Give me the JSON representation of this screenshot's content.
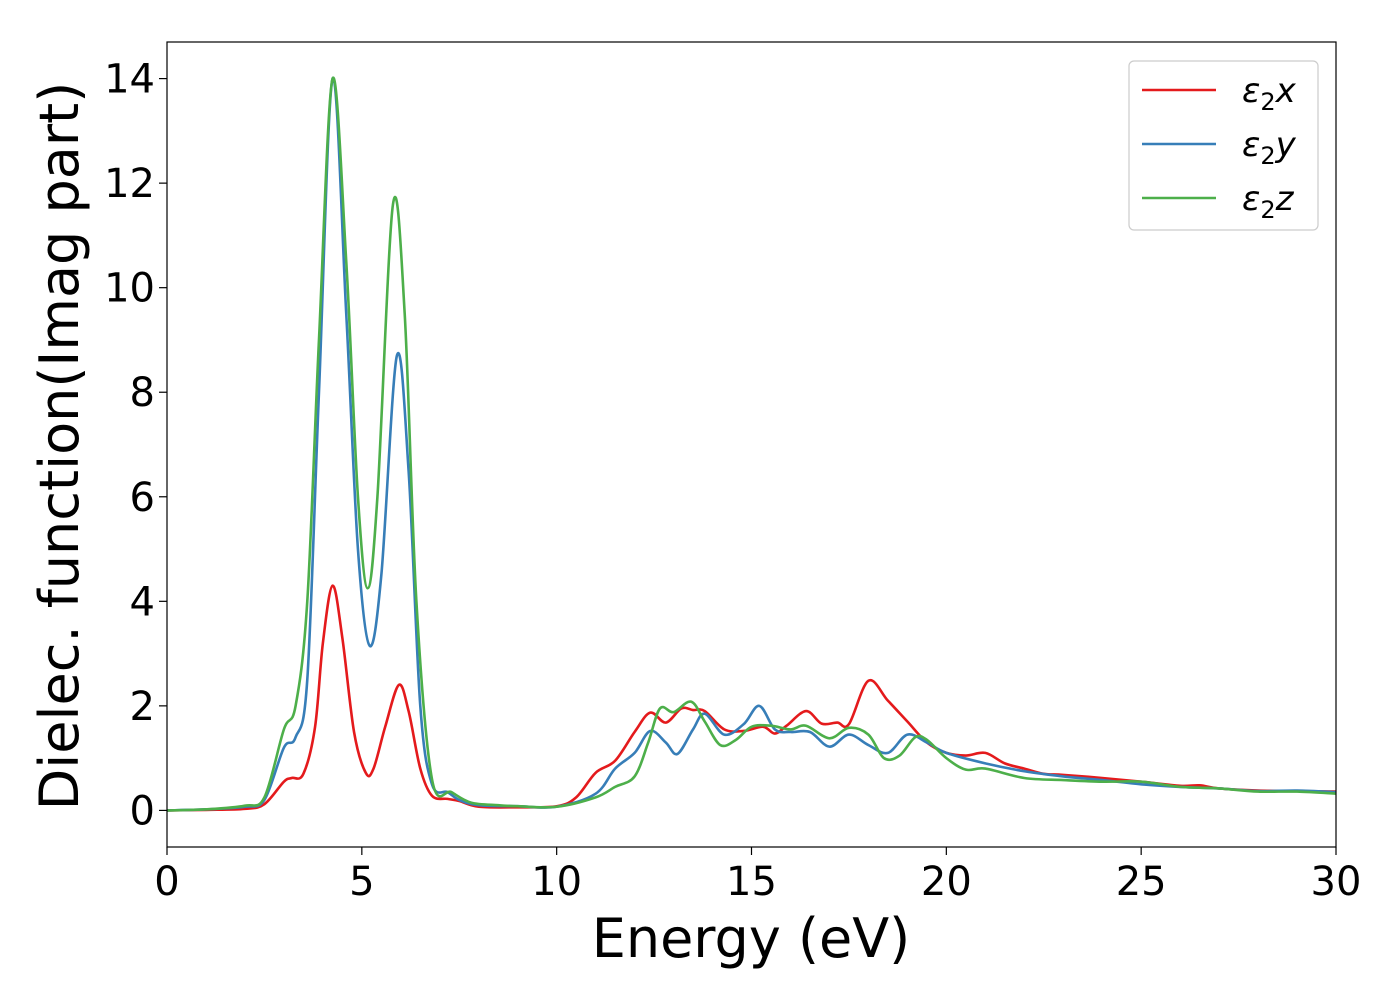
{
  "chart_data": {
    "type": "line",
    "title": "",
    "xlabel": "Energy (eV)",
    "ylabel": "Dielec. function(Imag part)",
    "xlim": [
      0,
      30
    ],
    "ylim": [
      -0.7,
      14.7
    ],
    "xticks": [
      0,
      5,
      10,
      15,
      20,
      25,
      30
    ],
    "yticks": [
      0,
      2,
      4,
      6,
      8,
      10,
      12,
      14
    ],
    "grid": false,
    "legend": "top-right",
    "series": [
      {
        "name": "ε2x",
        "symbol": "ε",
        "sub": "2",
        "axis": "x",
        "color": "#e41a1c",
        "points": [
          [
            0,
            0
          ],
          [
            1,
            0.01
          ],
          [
            2,
            0.03
          ],
          [
            2.5,
            0.12
          ],
          [
            3,
            0.55
          ],
          [
            3.2,
            0.62
          ],
          [
            3.5,
            0.7
          ],
          [
            3.8,
            1.6
          ],
          [
            4.0,
            3.2
          ],
          [
            4.25,
            4.3
          ],
          [
            4.5,
            3.3
          ],
          [
            4.8,
            1.5
          ],
          [
            5.1,
            0.72
          ],
          [
            5.3,
            0.8
          ],
          [
            5.6,
            1.6
          ],
          [
            5.95,
            2.4
          ],
          [
            6.2,
            1.9
          ],
          [
            6.5,
            0.8
          ],
          [
            6.8,
            0.28
          ],
          [
            7.2,
            0.22
          ],
          [
            7.5,
            0.18
          ],
          [
            8,
            0.07
          ],
          [
            9,
            0.06
          ],
          [
            10,
            0.08
          ],
          [
            10.5,
            0.25
          ],
          [
            11,
            0.72
          ],
          [
            11.5,
            0.95
          ],
          [
            12,
            1.5
          ],
          [
            12.4,
            1.87
          ],
          [
            12.8,
            1.68
          ],
          [
            13.2,
            1.95
          ],
          [
            13.5,
            1.92
          ],
          [
            13.8,
            1.9
          ],
          [
            14.3,
            1.55
          ],
          [
            14.8,
            1.52
          ],
          [
            15.3,
            1.6
          ],
          [
            15.6,
            1.47
          ],
          [
            15.9,
            1.62
          ],
          [
            16.4,
            1.9
          ],
          [
            16.8,
            1.66
          ],
          [
            17.2,
            1.68
          ],
          [
            17.5,
            1.65
          ],
          [
            18.0,
            2.48
          ],
          [
            18.5,
            2.1
          ],
          [
            19,
            1.7
          ],
          [
            19.5,
            1.3
          ],
          [
            20,
            1.1
          ],
          [
            20.5,
            1.05
          ],
          [
            21,
            1.1
          ],
          [
            21.5,
            0.9
          ],
          [
            22,
            0.8
          ],
          [
            22.5,
            0.7
          ],
          [
            23,
            0.68
          ],
          [
            24,
            0.62
          ],
          [
            25,
            0.55
          ],
          [
            26,
            0.47
          ],
          [
            26.5,
            0.48
          ],
          [
            27,
            0.42
          ],
          [
            28,
            0.38
          ],
          [
            29,
            0.37
          ],
          [
            30,
            0.36
          ]
        ]
      },
      {
        "name": "ε2y",
        "symbol": "ε",
        "sub": "2",
        "axis": "y",
        "color": "#377eb8",
        "points": [
          [
            0,
            0
          ],
          [
            1,
            0.02
          ],
          [
            2,
            0.07
          ],
          [
            2.5,
            0.2
          ],
          [
            3,
            1.2
          ],
          [
            3.3,
            1.4
          ],
          [
            3.6,
            2.5
          ],
          [
            3.9,
            8.0
          ],
          [
            4.25,
            14.0
          ],
          [
            4.6,
            9.5
          ],
          [
            4.9,
            5.0
          ],
          [
            5.2,
            3.15
          ],
          [
            5.5,
            4.5
          ],
          [
            5.9,
            8.7
          ],
          [
            6.2,
            6.5
          ],
          [
            6.5,
            2.0
          ],
          [
            6.8,
            0.5
          ],
          [
            7.2,
            0.35
          ],
          [
            7.5,
            0.2
          ],
          [
            8,
            0.1
          ],
          [
            9,
            0.08
          ],
          [
            10,
            0.07
          ],
          [
            11,
            0.32
          ],
          [
            11.5,
            0.8
          ],
          [
            12,
            1.1
          ],
          [
            12.4,
            1.52
          ],
          [
            12.8,
            1.3
          ],
          [
            13.1,
            1.08
          ],
          [
            13.5,
            1.55
          ],
          [
            13.8,
            1.85
          ],
          [
            14.3,
            1.45
          ],
          [
            14.8,
            1.65
          ],
          [
            15.2,
            2.0
          ],
          [
            15.6,
            1.55
          ],
          [
            16,
            1.5
          ],
          [
            16.5,
            1.5
          ],
          [
            17,
            1.22
          ],
          [
            17.5,
            1.45
          ],
          [
            18,
            1.25
          ],
          [
            18.5,
            1.1
          ],
          [
            19,
            1.45
          ],
          [
            19.5,
            1.3
          ],
          [
            20,
            1.1
          ],
          [
            21,
            0.9
          ],
          [
            22,
            0.75
          ],
          [
            23,
            0.65
          ],
          [
            24,
            0.58
          ],
          [
            25,
            0.5
          ],
          [
            26,
            0.45
          ],
          [
            27,
            0.42
          ],
          [
            28,
            0.37
          ],
          [
            29,
            0.38
          ],
          [
            30,
            0.35
          ]
        ]
      },
      {
        "name": "ε2z",
        "symbol": "ε",
        "sub": "2",
        "axis": "z",
        "color": "#4daf4a",
        "points": [
          [
            0,
            0
          ],
          [
            1,
            0.02
          ],
          [
            2,
            0.09
          ],
          [
            2.5,
            0.25
          ],
          [
            3,
            1.55
          ],
          [
            3.3,
            2.0
          ],
          [
            3.6,
            4.0
          ],
          [
            3.9,
            9.0
          ],
          [
            4.25,
            14.0
          ],
          [
            4.6,
            10.5
          ],
          [
            4.9,
            6.0
          ],
          [
            5.15,
            4.25
          ],
          [
            5.4,
            6.0
          ],
          [
            5.8,
            11.6
          ],
          [
            6.1,
            9.5
          ],
          [
            6.4,
            4.0
          ],
          [
            6.8,
            0.6
          ],
          [
            7.3,
            0.35
          ],
          [
            7.8,
            0.15
          ],
          [
            8.5,
            0.1
          ],
          [
            9,
            0.08
          ],
          [
            10,
            0.07
          ],
          [
            11,
            0.25
          ],
          [
            11.5,
            0.45
          ],
          [
            12,
            0.65
          ],
          [
            12.35,
            1.3
          ],
          [
            12.65,
            1.95
          ],
          [
            13,
            1.88
          ],
          [
            13.45,
            2.08
          ],
          [
            13.8,
            1.7
          ],
          [
            14.2,
            1.25
          ],
          [
            14.6,
            1.35
          ],
          [
            15,
            1.6
          ],
          [
            15.5,
            1.62
          ],
          [
            16,
            1.55
          ],
          [
            16.4,
            1.62
          ],
          [
            17,
            1.38
          ],
          [
            17.5,
            1.58
          ],
          [
            18,
            1.45
          ],
          [
            18.4,
            1.0
          ],
          [
            18.8,
            1.05
          ],
          [
            19.2,
            1.4
          ],
          [
            19.5,
            1.35
          ],
          [
            20,
            1.0
          ],
          [
            20.5,
            0.78
          ],
          [
            21,
            0.8
          ],
          [
            22,
            0.62
          ],
          [
            23,
            0.58
          ],
          [
            24,
            0.55
          ],
          [
            25,
            0.55
          ],
          [
            26,
            0.45
          ],
          [
            27,
            0.42
          ],
          [
            28,
            0.36
          ],
          [
            29,
            0.36
          ],
          [
            30,
            0.32
          ]
        ]
      }
    ]
  }
}
